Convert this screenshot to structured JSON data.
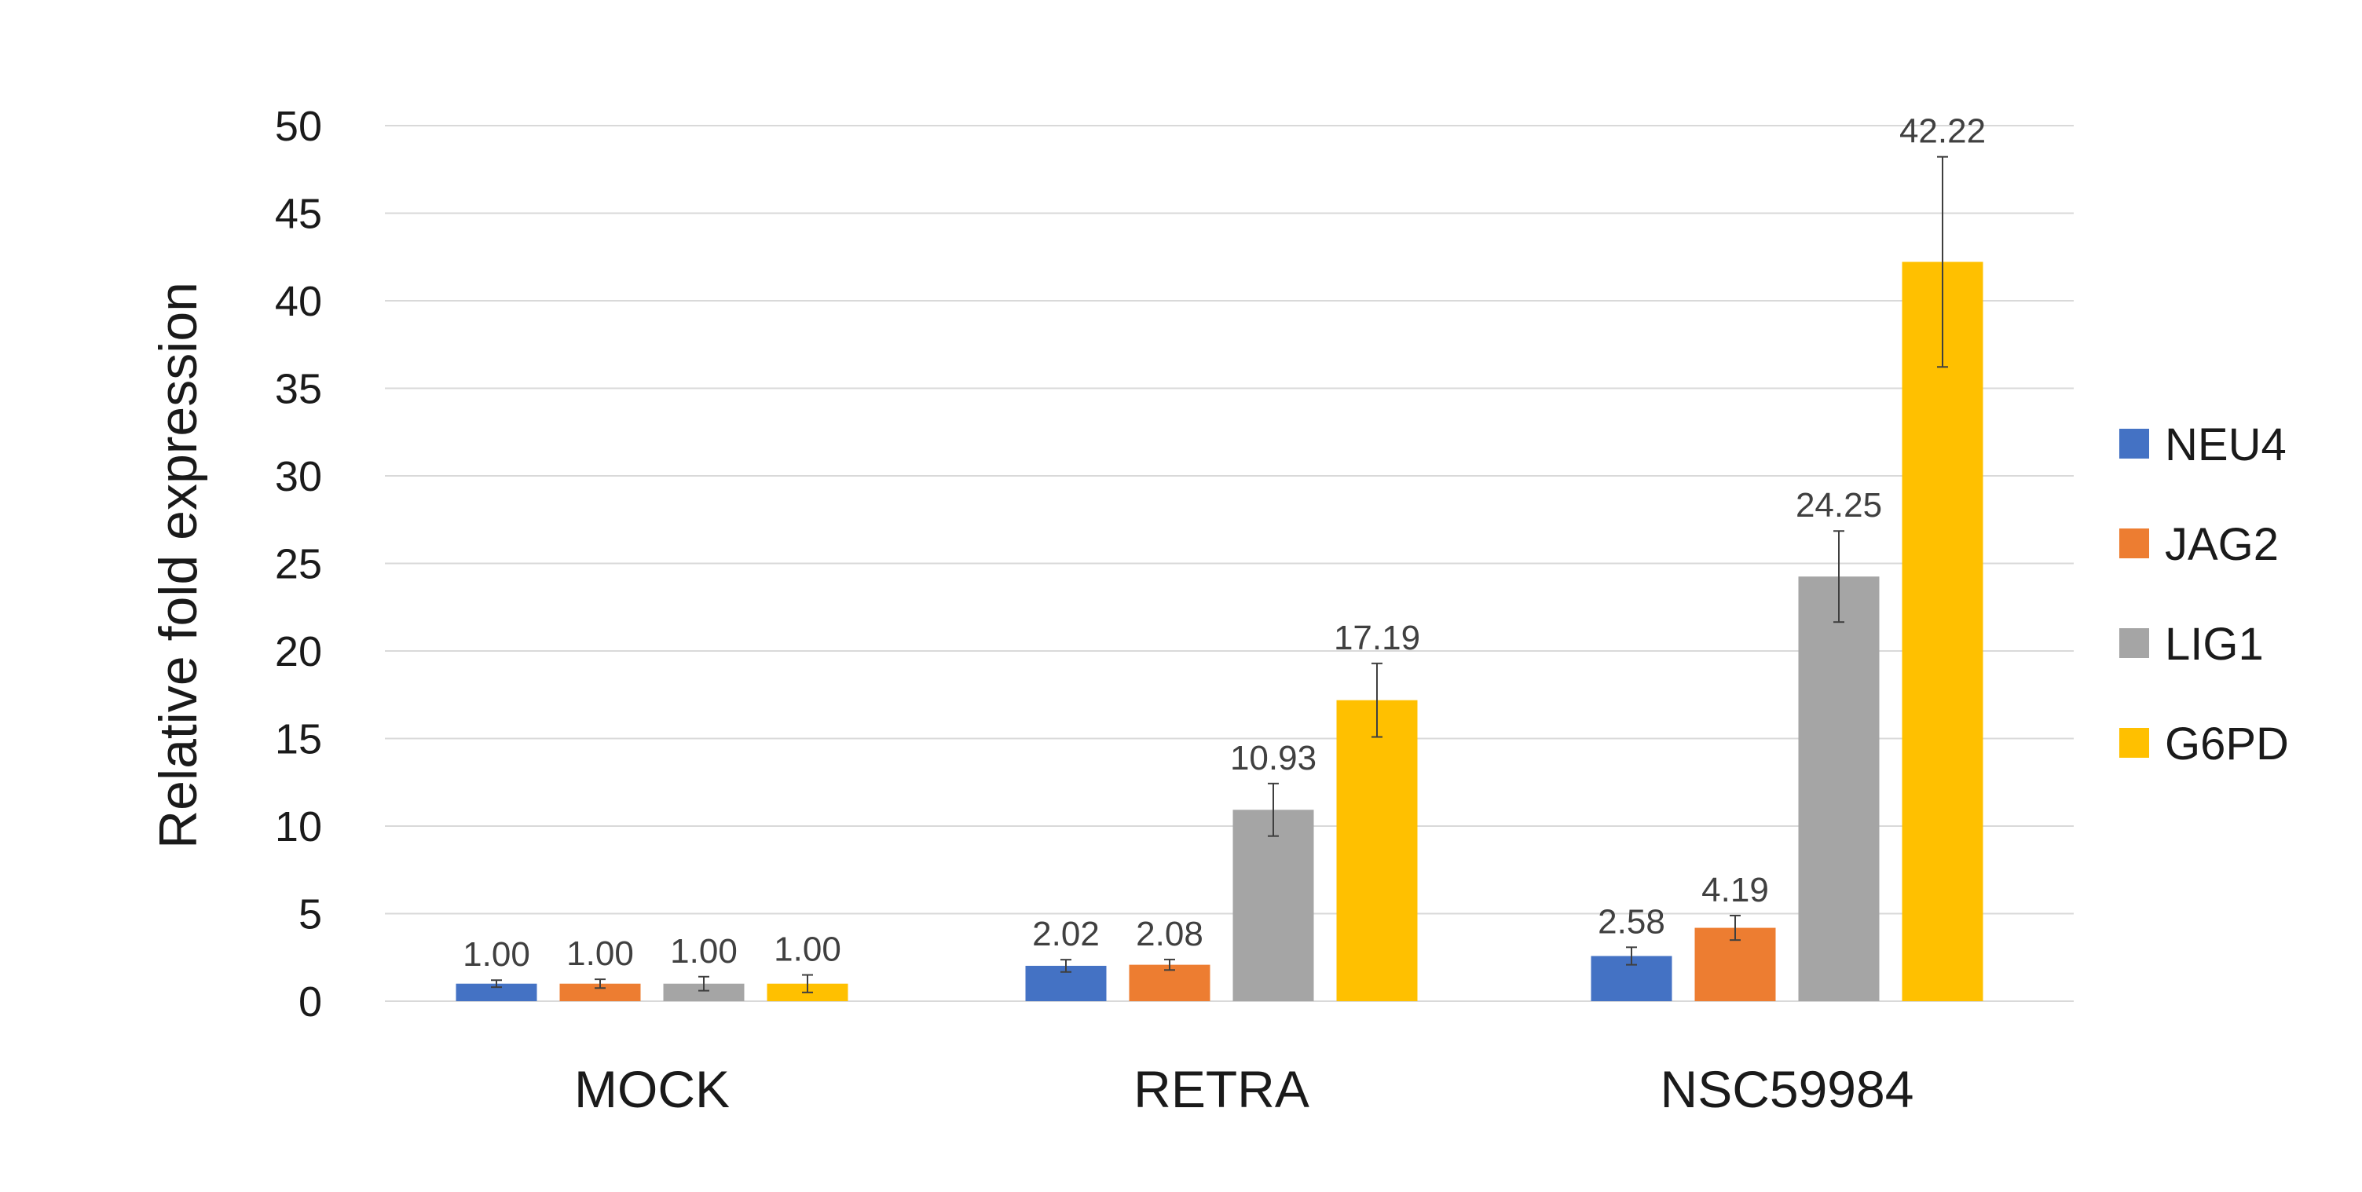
{
  "chart_data": {
    "type": "bar",
    "ylabel": "Relative fold expression",
    "ylim": [
      0,
      50
    ],
    "yticks": [
      0,
      5,
      10,
      15,
      20,
      25,
      30,
      35,
      40,
      45,
      50
    ],
    "grid": true,
    "legend_position": "right",
    "categories": [
      "MOCK",
      "RETRA",
      "NSC59984"
    ],
    "series": [
      {
        "name": "NEU4",
        "color": "#4472c4",
        "values": [
          1.0,
          2.02,
          2.58
        ],
        "labels": [
          "1.00",
          "2.02",
          "2.58"
        ],
        "errors": [
          0.2,
          0.35,
          0.5
        ]
      },
      {
        "name": "JAG2",
        "color": "#ed7d31",
        "values": [
          1.0,
          2.08,
          4.19
        ],
        "labels": [
          "1.00",
          "2.08",
          "4.19"
        ],
        "errors": [
          0.25,
          0.3,
          0.7
        ]
      },
      {
        "name": "LIG1",
        "color": "#a5a5a5",
        "values": [
          1.0,
          10.93,
          24.25
        ],
        "labels": [
          "1.00",
          "10.93",
          "24.25"
        ],
        "errors": [
          0.4,
          1.5,
          2.6
        ]
      },
      {
        "name": "G6PD",
        "color": "#ffc000",
        "values": [
          1.0,
          17.19,
          42.22
        ],
        "labels": [
          "1.00",
          "17.19",
          "42.22"
        ],
        "errors": [
          0.5,
          2.1,
          6.0
        ]
      }
    ]
  }
}
